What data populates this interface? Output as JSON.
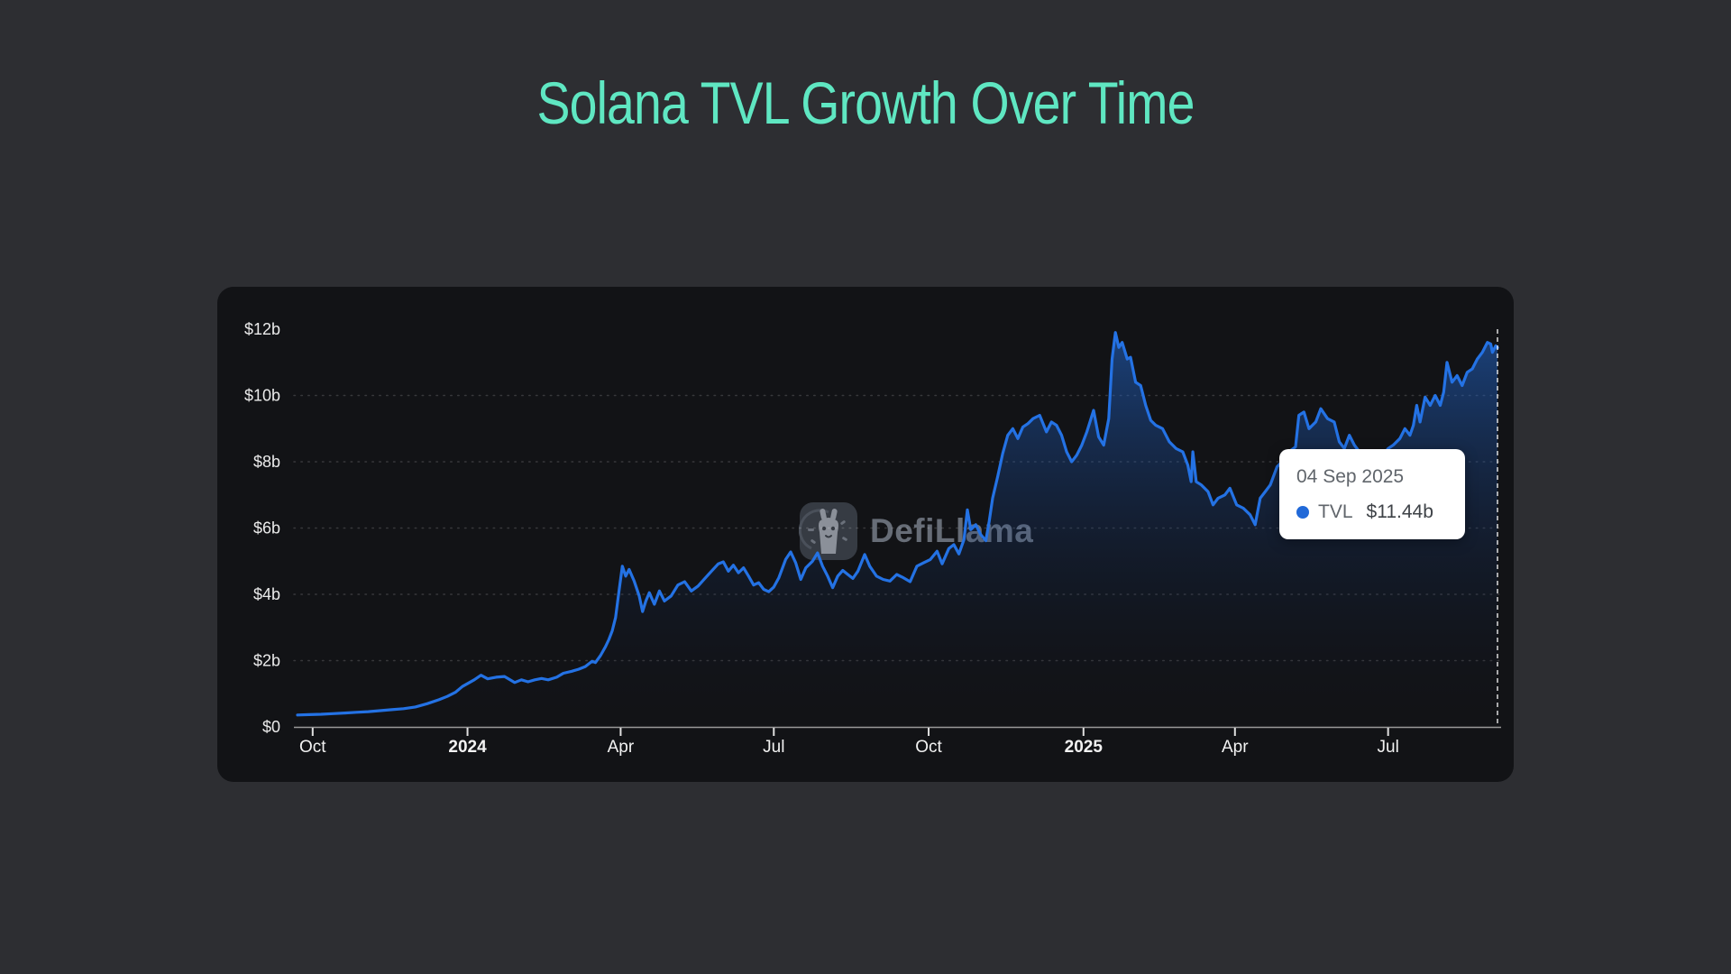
{
  "page": {
    "title": "Solana TVL Growth Over Time",
    "background": "#2d2e32",
    "title_color": "#5fe7c2"
  },
  "panel": {
    "background": "#121316"
  },
  "watermark": {
    "label": "DefiLlama"
  },
  "tooltip": {
    "date": "04 Sep 2025",
    "series": "TVL",
    "value": "$11.44b",
    "dot_color": "#2169d8",
    "background": "#ffffff"
  },
  "chart_data": {
    "type": "area",
    "title": "Solana TVL Growth Over Time",
    "series_name": "TVL",
    "unit": "USD billions",
    "ylim": [
      0,
      12
    ],
    "line_color": "#2472e4",
    "area_gradient": [
      "rgba(36,114,228,0.50)",
      "rgba(23,62,130,0.20)",
      "rgba(8,18,40,0)"
    ],
    "grid_color": "rgba(255,255,255,0.16)",
    "axis_color": "#9a9a9a",
    "tick_color": "#e0e0e0",
    "label_color": "#f2f2f2",
    "ylabel_color": "#ebebeb",
    "cursor_line_color": "rgba(255,255,255,0.8)",
    "y_ticks": [
      {
        "value": 0,
        "label": "$0",
        "grid": false
      },
      {
        "value": 2,
        "label": "$2b",
        "grid": true
      },
      {
        "value": 4,
        "label": "$4b",
        "grid": true
      },
      {
        "value": 6,
        "label": "$6b",
        "grid": true
      },
      {
        "value": 8,
        "label": "$8b",
        "grid": true
      },
      {
        "value": 10,
        "label": "$10b",
        "grid": true
      },
      {
        "value": 12,
        "label": "$12b",
        "grid": false
      }
    ],
    "x_ticks": [
      {
        "date": "2023-10-01",
        "label": "Oct",
        "bold": false
      },
      {
        "date": "2024-01-01",
        "label": "2024",
        "bold": true
      },
      {
        "date": "2024-04-01",
        "label": "Apr",
        "bold": false
      },
      {
        "date": "2024-07-01",
        "label": "Jul",
        "bold": false
      },
      {
        "date": "2024-10-01",
        "label": "Oct",
        "bold": false
      },
      {
        "date": "2025-01-01",
        "label": "2025",
        "bold": true
      },
      {
        "date": "2025-04-01",
        "label": "Apr",
        "bold": false
      },
      {
        "date": "2025-07-01",
        "label": "Jul",
        "bold": false
      }
    ],
    "cursor": {
      "date": "2025-09-04",
      "label": "04 Sep 2025",
      "value": 11.44,
      "value_label": "$11.44b"
    },
    "points": [
      [
        "2023-09-22",
        0.36
      ],
      [
        "2023-09-29",
        0.37
      ],
      [
        "2023-10-06",
        0.38
      ],
      [
        "2023-10-13",
        0.4
      ],
      [
        "2023-10-20",
        0.42
      ],
      [
        "2023-10-27",
        0.44
      ],
      [
        "2023-11-03",
        0.46
      ],
      [
        "2023-11-10",
        0.49
      ],
      [
        "2023-11-17",
        0.52
      ],
      [
        "2023-11-24",
        0.55
      ],
      [
        "2023-12-01",
        0.6
      ],
      [
        "2023-12-08",
        0.7
      ],
      [
        "2023-12-15",
        0.82
      ],
      [
        "2023-12-20",
        0.92
      ],
      [
        "2023-12-25",
        1.05
      ],
      [
        "2023-12-29",
        1.22
      ],
      [
        "2024-01-05",
        1.42
      ],
      [
        "2024-01-09",
        1.56
      ],
      [
        "2024-01-13",
        1.45
      ],
      [
        "2024-01-18",
        1.5
      ],
      [
        "2024-01-23",
        1.52
      ],
      [
        "2024-01-29",
        1.34
      ],
      [
        "2024-02-02",
        1.42
      ],
      [
        "2024-02-06",
        1.36
      ],
      [
        "2024-02-10",
        1.42
      ],
      [
        "2024-02-14",
        1.46
      ],
      [
        "2024-02-18",
        1.42
      ],
      [
        "2024-02-23",
        1.5
      ],
      [
        "2024-02-27",
        1.62
      ],
      [
        "2024-03-03",
        1.68
      ],
      [
        "2024-03-07",
        1.74
      ],
      [
        "2024-03-11",
        1.82
      ],
      [
        "2024-03-15",
        1.98
      ],
      [
        "2024-03-17",
        1.94
      ],
      [
        "2024-03-20",
        2.15
      ],
      [
        "2024-03-23",
        2.42
      ],
      [
        "2024-03-25",
        2.64
      ],
      [
        "2024-03-27",
        2.9
      ],
      [
        "2024-03-29",
        3.3
      ],
      [
        "2024-03-31",
        4.1
      ],
      [
        "2024-04-02",
        4.85
      ],
      [
        "2024-04-04",
        4.55
      ],
      [
        "2024-04-06",
        4.75
      ],
      [
        "2024-04-09",
        4.4
      ],
      [
        "2024-04-12",
        3.95
      ],
      [
        "2024-04-14",
        3.48
      ],
      [
        "2024-04-16",
        3.8
      ],
      [
        "2024-04-18",
        4.05
      ],
      [
        "2024-04-21",
        3.7
      ],
      [
        "2024-04-24",
        4.1
      ],
      [
        "2024-04-27",
        3.8
      ],
      [
        "2024-05-01",
        3.95
      ],
      [
        "2024-05-05",
        4.28
      ],
      [
        "2024-05-09",
        4.38
      ],
      [
        "2024-05-13",
        4.1
      ],
      [
        "2024-05-17",
        4.25
      ],
      [
        "2024-05-21",
        4.48
      ],
      [
        "2024-05-25",
        4.7
      ],
      [
        "2024-05-29",
        4.92
      ],
      [
        "2024-06-01",
        4.98
      ],
      [
        "2024-06-04",
        4.7
      ],
      [
        "2024-06-07",
        4.88
      ],
      [
        "2024-06-10",
        4.65
      ],
      [
        "2024-06-13",
        4.8
      ],
      [
        "2024-06-16",
        4.55
      ],
      [
        "2024-06-19",
        4.28
      ],
      [
        "2024-06-22",
        4.35
      ],
      [
        "2024-06-25",
        4.15
      ],
      [
        "2024-06-28",
        4.08
      ],
      [
        "2024-07-01",
        4.22
      ],
      [
        "2024-07-04",
        4.5
      ],
      [
        "2024-07-08",
        5.05
      ],
      [
        "2024-07-11",
        5.28
      ],
      [
        "2024-07-14",
        4.95
      ],
      [
        "2024-07-17",
        4.45
      ],
      [
        "2024-07-20",
        4.8
      ],
      [
        "2024-07-24",
        5.0
      ],
      [
        "2024-07-27",
        5.25
      ],
      [
        "2024-07-30",
        4.85
      ],
      [
        "2024-08-02",
        4.55
      ],
      [
        "2024-08-05",
        4.2
      ],
      [
        "2024-08-08",
        4.55
      ],
      [
        "2024-08-11",
        4.72
      ],
      [
        "2024-08-14",
        4.6
      ],
      [
        "2024-08-17",
        4.48
      ],
      [
        "2024-08-20",
        4.7
      ],
      [
        "2024-08-24",
        5.2
      ],
      [
        "2024-08-27",
        4.85
      ],
      [
        "2024-08-31",
        4.55
      ],
      [
        "2024-09-04",
        4.45
      ],
      [
        "2024-09-08",
        4.4
      ],
      [
        "2024-09-12",
        4.6
      ],
      [
        "2024-09-16",
        4.5
      ],
      [
        "2024-09-20",
        4.38
      ],
      [
        "2024-09-24",
        4.85
      ],
      [
        "2024-09-28",
        4.95
      ],
      [
        "2024-10-02",
        5.05
      ],
      [
        "2024-10-06",
        5.3
      ],
      [
        "2024-10-09",
        4.92
      ],
      [
        "2024-10-13",
        5.38
      ],
      [
        "2024-10-16",
        5.5
      ],
      [
        "2024-10-19",
        5.22
      ],
      [
        "2024-10-22",
        5.65
      ],
      [
        "2024-10-24",
        6.55
      ],
      [
        "2024-10-26",
        5.95
      ],
      [
        "2024-10-29",
        6.1
      ],
      [
        "2024-11-01",
        5.8
      ],
      [
        "2024-11-04",
        5.62
      ],
      [
        "2024-11-06",
        6.2
      ],
      [
        "2024-11-08",
        6.9
      ],
      [
        "2024-11-11",
        7.55
      ],
      [
        "2024-11-14",
        8.25
      ],
      [
        "2024-11-17",
        8.8
      ],
      [
        "2024-11-20",
        9.0
      ],
      [
        "2024-11-23",
        8.7
      ],
      [
        "2024-11-26",
        9.05
      ],
      [
        "2024-11-29",
        9.15
      ],
      [
        "2024-12-02",
        9.3
      ],
      [
        "2024-12-06",
        9.4
      ],
      [
        "2024-12-10",
        8.9
      ],
      [
        "2024-12-13",
        9.2
      ],
      [
        "2024-12-16",
        9.1
      ],
      [
        "2024-12-19",
        8.8
      ],
      [
        "2024-12-22",
        8.3
      ],
      [
        "2024-12-25",
        8.0
      ],
      [
        "2024-12-28",
        8.2
      ],
      [
        "2024-12-31",
        8.5
      ],
      [
        "2025-01-03",
        8.9
      ],
      [
        "2025-01-07",
        9.55
      ],
      [
        "2025-01-10",
        8.75
      ],
      [
        "2025-01-13",
        8.5
      ],
      [
        "2025-01-16",
        9.3
      ],
      [
        "2025-01-18",
        11.1
      ],
      [
        "2025-01-20",
        11.9
      ],
      [
        "2025-01-22",
        11.45
      ],
      [
        "2025-01-24",
        11.6
      ],
      [
        "2025-01-27",
        11.1
      ],
      [
        "2025-01-29",
        11.15
      ],
      [
        "2025-02-01",
        10.4
      ],
      [
        "2025-02-04",
        10.3
      ],
      [
        "2025-02-07",
        9.7
      ],
      [
        "2025-02-10",
        9.25
      ],
      [
        "2025-02-13",
        9.1
      ],
      [
        "2025-02-17",
        9.0
      ],
      [
        "2025-02-21",
        8.6
      ],
      [
        "2025-02-25",
        8.4
      ],
      [
        "2025-03-01",
        8.3
      ],
      [
        "2025-03-04",
        7.9
      ],
      [
        "2025-03-06",
        7.4
      ],
      [
        "2025-03-07",
        8.3
      ],
      [
        "2025-03-09",
        7.4
      ],
      [
        "2025-03-12",
        7.3
      ],
      [
        "2025-03-16",
        7.1
      ],
      [
        "2025-03-19",
        6.7
      ],
      [
        "2025-03-22",
        6.9
      ],
      [
        "2025-03-26",
        7.0
      ],
      [
        "2025-03-29",
        7.2
      ],
      [
        "2025-04-02",
        6.7
      ],
      [
        "2025-04-06",
        6.6
      ],
      [
        "2025-04-10",
        6.4
      ],
      [
        "2025-04-13",
        6.1
      ],
      [
        "2025-04-16",
        6.9
      ],
      [
        "2025-04-19",
        7.1
      ],
      [
        "2025-04-22",
        7.3
      ],
      [
        "2025-04-26",
        7.85
      ],
      [
        "2025-04-29",
        8.0
      ],
      [
        "2025-05-03",
        8.3
      ],
      [
        "2025-05-07",
        8.45
      ],
      [
        "2025-05-09",
        9.4
      ],
      [
        "2025-05-12",
        9.5
      ],
      [
        "2025-05-15",
        9.0
      ],
      [
        "2025-05-19",
        9.2
      ],
      [
        "2025-05-22",
        9.6
      ],
      [
        "2025-05-26",
        9.3
      ],
      [
        "2025-05-30",
        9.2
      ],
      [
        "2025-06-02",
        8.6
      ],
      [
        "2025-06-05",
        8.4
      ],
      [
        "2025-06-08",
        8.8
      ],
      [
        "2025-06-11",
        8.5
      ],
      [
        "2025-06-14",
        8.3
      ],
      [
        "2025-06-17",
        8.1
      ],
      [
        "2025-06-21",
        8.2
      ],
      [
        "2025-06-25",
        8.05
      ],
      [
        "2025-06-28",
        8.2
      ],
      [
        "2025-07-01",
        8.4
      ],
      [
        "2025-07-04",
        8.5
      ],
      [
        "2025-07-08",
        8.7
      ],
      [
        "2025-07-11",
        9.0
      ],
      [
        "2025-07-14",
        8.8
      ],
      [
        "2025-07-16",
        9.1
      ],
      [
        "2025-07-18",
        9.7
      ],
      [
        "2025-07-20",
        9.2
      ],
      [
        "2025-07-23",
        9.95
      ],
      [
        "2025-07-26",
        9.7
      ],
      [
        "2025-07-29",
        10.0
      ],
      [
        "2025-08-01",
        9.7
      ],
      [
        "2025-08-03",
        10.1
      ],
      [
        "2025-08-05",
        11.0
      ],
      [
        "2025-08-08",
        10.4
      ],
      [
        "2025-08-11",
        10.6
      ],
      [
        "2025-08-14",
        10.3
      ],
      [
        "2025-08-17",
        10.7
      ],
      [
        "2025-08-20",
        10.8
      ],
      [
        "2025-08-23",
        11.1
      ],
      [
        "2025-08-26",
        11.3
      ],
      [
        "2025-08-29",
        11.6
      ],
      [
        "2025-08-31",
        11.55
      ],
      [
        "2025-09-01",
        11.3
      ],
      [
        "2025-09-03",
        11.5
      ],
      [
        "2025-09-04",
        11.44
      ]
    ]
  }
}
